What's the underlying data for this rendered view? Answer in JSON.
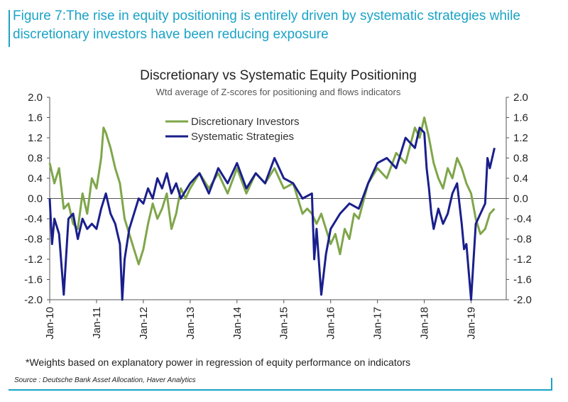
{
  "figure_title": "Figure 7:The rise in equity positioning is entirely driven by systematic strategies while discretionary investors have been reducing exposure",
  "footnote": "*Weights based on explanatory power in regression of equity performance on indicators",
  "source": "Source : Deutsche Bank Asset Allocation, Haver Analytics",
  "colors": {
    "accent": "#1aa3c7",
    "discretionary": "#7fa64a",
    "systematic": "#1a1f8c",
    "axis": "#555555"
  },
  "chart_data": {
    "type": "line",
    "title": "Discretionary vs Systematic Equity Positioning",
    "subtitle": "Wtd average of Z-scores for positioning and flows indicators",
    "xlabel": "",
    "ylabel": "",
    "ylim": [
      -2.0,
      2.0
    ],
    "xlim": [
      2010.0,
      2019.75
    ],
    "y_ticks": [
      "2.0",
      "1.6",
      "1.2",
      "0.8",
      "0.4",
      "0.0",
      "-0.4",
      "-0.8",
      "-1.2",
      "-1.6",
      "-2.0"
    ],
    "x_ticks": [
      "Jan-10",
      "Jan-11",
      "Jan-12",
      "Jan-13",
      "Jan-14",
      "Jan-15",
      "Jan-16",
      "Jan-17",
      "Jan-18",
      "Jan-19"
    ],
    "legend": [
      "Discretionary Investors",
      "Systematic Strategies"
    ],
    "legend_position": "top-center",
    "series": [
      {
        "name": "Discretionary Investors",
        "x": [
          2010.0,
          2010.1,
          2010.2,
          2010.3,
          2010.4,
          2010.5,
          2010.6,
          2010.7,
          2010.8,
          2010.9,
          2011.0,
          2011.1,
          2011.15,
          2011.2,
          2011.3,
          2011.4,
          2011.5,
          2011.6,
          2011.7,
          2011.8,
          2011.9,
          2012.0,
          2012.1,
          2012.2,
          2012.3,
          2012.4,
          2012.5,
          2012.6,
          2012.7,
          2012.8,
          2012.9,
          2013.0,
          2013.2,
          2013.4,
          2013.6,
          2013.8,
          2014.0,
          2014.2,
          2014.4,
          2014.6,
          2014.8,
          2015.0,
          2015.2,
          2015.4,
          2015.5,
          2015.6,
          2015.7,
          2015.8,
          2015.9,
          2016.0,
          2016.1,
          2016.2,
          2016.3,
          2016.4,
          2016.5,
          2016.6,
          2016.8,
          2017.0,
          2017.2,
          2017.4,
          2017.6,
          2017.8,
          2017.9,
          2018.0,
          2018.1,
          2018.2,
          2018.3,
          2018.4,
          2018.5,
          2018.6,
          2018.7,
          2018.8,
          2018.9,
          2019.0,
          2019.1,
          2019.2,
          2019.3,
          2019.4,
          2019.5
        ],
        "values": [
          0.7,
          0.3,
          0.6,
          -0.2,
          -0.1,
          -0.5,
          -0.6,
          0.1,
          -0.3,
          0.4,
          0.2,
          0.8,
          1.4,
          1.3,
          1.0,
          0.6,
          0.3,
          -0.4,
          -0.7,
          -1.0,
          -1.3,
          -1.0,
          -0.5,
          -0.1,
          -0.4,
          -0.2,
          0.1,
          -0.6,
          -0.3,
          0.2,
          0.0,
          0.2,
          0.5,
          0.2,
          0.5,
          0.1,
          0.6,
          0.1,
          0.5,
          0.3,
          0.6,
          0.2,
          0.3,
          -0.3,
          -0.2,
          -0.3,
          -0.5,
          -0.3,
          -0.6,
          -0.9,
          -0.7,
          -1.1,
          -0.6,
          -0.8,
          -0.3,
          -0.4,
          0.3,
          0.6,
          0.4,
          0.9,
          0.7,
          1.4,
          1.2,
          1.6,
          1.2,
          0.7,
          0.4,
          0.2,
          0.6,
          0.4,
          0.8,
          0.6,
          0.3,
          0.1,
          -0.4,
          -0.7,
          -0.6,
          -0.3,
          -0.2
        ]
      },
      {
        "name": "Systematic Strategies",
        "x": [
          2010.0,
          2010.05,
          2010.1,
          2010.2,
          2010.3,
          2010.4,
          2010.5,
          2010.6,
          2010.7,
          2010.8,
          2010.9,
          2011.0,
          2011.1,
          2011.2,
          2011.3,
          2011.4,
          2011.5,
          2011.55,
          2011.6,
          2011.7,
          2011.8,
          2011.9,
          2012.0,
          2012.1,
          2012.2,
          2012.3,
          2012.4,
          2012.5,
          2012.6,
          2012.7,
          2012.8,
          2013.0,
          2013.2,
          2013.4,
          2013.6,
          2013.8,
          2014.0,
          2014.2,
          2014.4,
          2014.6,
          2014.8,
          2015.0,
          2015.2,
          2015.4,
          2015.6,
          2015.65,
          2015.7,
          2015.8,
          2015.9,
          2016.0,
          2016.2,
          2016.4,
          2016.6,
          2016.8,
          2017.0,
          2017.2,
          2017.4,
          2017.6,
          2017.8,
          2017.9,
          2018.0,
          2018.05,
          2018.1,
          2018.15,
          2018.2,
          2018.3,
          2018.4,
          2018.5,
          2018.6,
          2018.7,
          2018.8,
          2018.85,
          2018.9,
          2019.0,
          2019.1,
          2019.2,
          2019.3,
          2019.35,
          2019.4,
          2019.5
        ],
        "values": [
          0.0,
          -0.9,
          -0.4,
          -0.7,
          -1.9,
          -0.4,
          -0.3,
          -0.8,
          -0.4,
          -0.6,
          -0.5,
          -0.6,
          -0.2,
          0.1,
          -0.3,
          -0.5,
          -0.9,
          -2.0,
          -1.2,
          -0.6,
          -0.3,
          0.0,
          -0.1,
          0.2,
          0.0,
          0.4,
          0.2,
          0.5,
          0.1,
          0.3,
          0.0,
          0.3,
          0.5,
          0.1,
          0.6,
          0.3,
          0.7,
          0.2,
          0.5,
          0.3,
          0.8,
          0.4,
          0.3,
          0.0,
          0.1,
          -1.2,
          -0.6,
          -1.9,
          -1.1,
          -0.6,
          -0.3,
          -0.1,
          -0.2,
          0.3,
          0.7,
          0.8,
          0.6,
          1.2,
          1.0,
          1.4,
          1.3,
          0.6,
          0.2,
          -0.3,
          -0.6,
          -0.2,
          -0.5,
          -0.3,
          0.1,
          0.3,
          -0.5,
          -1.0,
          -0.9,
          -2.0,
          -0.5,
          -0.3,
          -0.1,
          0.8,
          0.6,
          1.0
        ]
      }
    ]
  }
}
